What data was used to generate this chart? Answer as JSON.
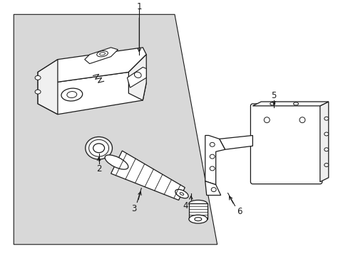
{
  "background_color": "#ffffff",
  "panel_bg_color": "#dcdcdc",
  "line_color": "#1a1a1a",
  "figsize": [
    4.89,
    3.6
  ],
  "dpi": 100
}
